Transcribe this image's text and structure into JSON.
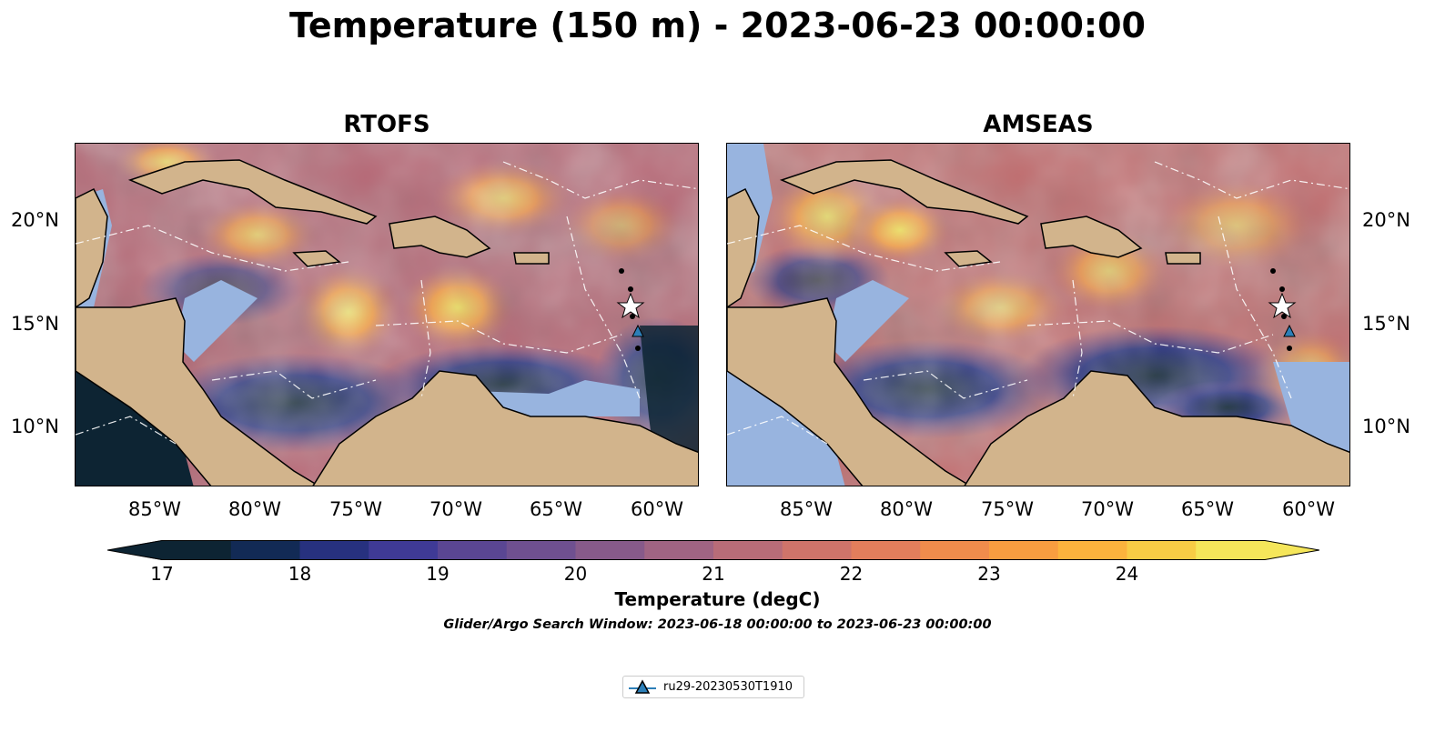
{
  "title": "Temperature (150 m) - 2023-06-23 00:00:00",
  "panels": [
    {
      "title": "RTOFS"
    },
    {
      "title": "AMSEAS"
    }
  ],
  "axes": {
    "lon_ticks": [
      "85°W",
      "80°W",
      "75°W",
      "70°W",
      "65°W",
      "60°W"
    ],
    "lat_ticks": [
      "20°N",
      "15°N",
      "10°N"
    ]
  },
  "colorbar": {
    "ticks": [
      "17",
      "18",
      "19",
      "20",
      "21",
      "22",
      "23",
      "24"
    ],
    "label": "Temperature (degC)",
    "colors": [
      "#0d2433",
      "#122a55",
      "#27317f",
      "#3f3a96",
      "#5a4693",
      "#6f5090",
      "#875a8a",
      "#a06483",
      "#b86c78",
      "#cf746a",
      "#e27e5c",
      "#f08c4c",
      "#f89d40",
      "#fbb33d",
      "#f8cc45",
      "#f5e65a"
    ]
  },
  "subtitle": "Glider/Argo Search Window: 2023-06-18 00:00:00 to 2023-06-23 00:00:00",
  "legend": {
    "label": "ru29-20230530T1910",
    "marker_color": "#2c7fb8"
  },
  "map_colors": {
    "land": "#d2b48c",
    "shelf": "#98b4df",
    "deep_cold": "#0d2433"
  }
}
